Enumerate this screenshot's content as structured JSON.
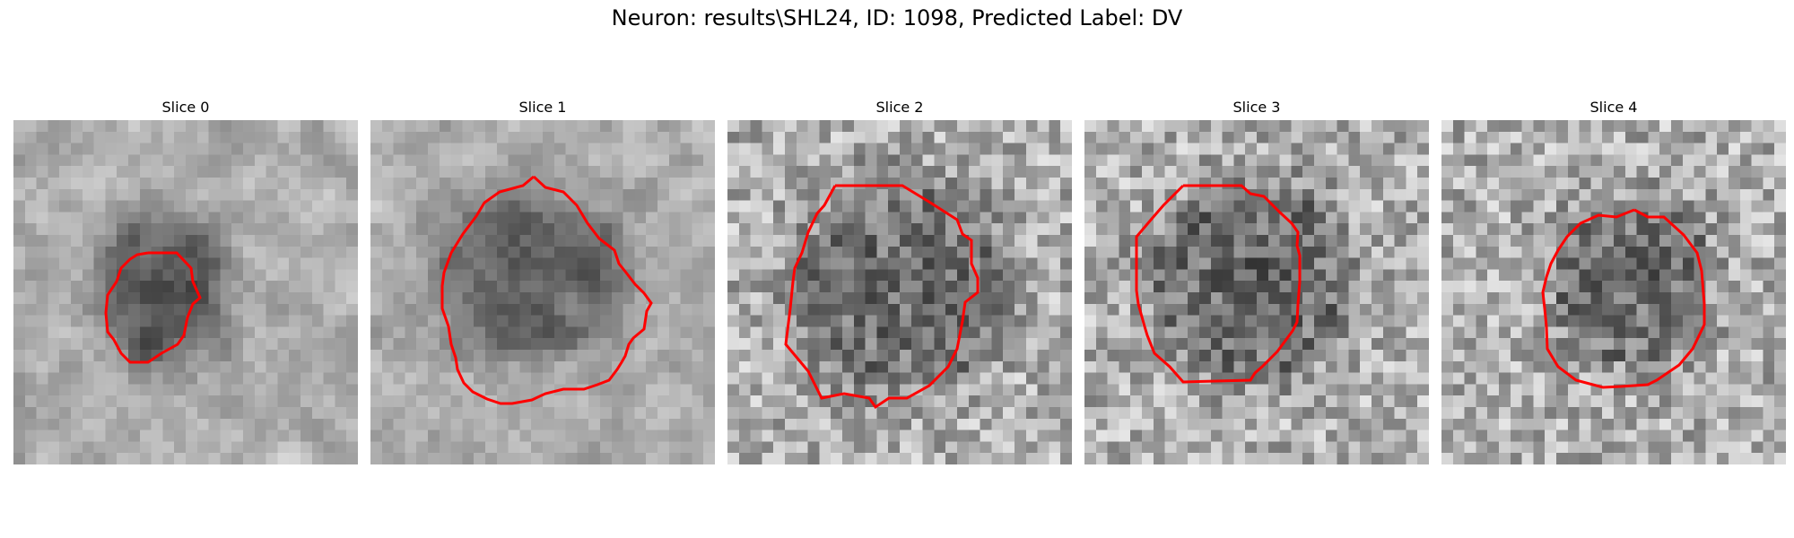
{
  "figure": {
    "title": "Neuron: results\\SHL24, ID: 1098, Predicted Label: DV"
  },
  "panels": [
    {
      "title": "Slice 0",
      "icon": "grayscale-slice-image"
    },
    {
      "title": "Slice 1",
      "icon": "grayscale-slice-image"
    },
    {
      "title": "Slice 2",
      "icon": "grayscale-slice-image"
    },
    {
      "title": "Slice 3",
      "icon": "grayscale-slice-image"
    },
    {
      "title": "Slice 4",
      "icon": "grayscale-slice-image"
    }
  ],
  "colors": {
    "contour": "#ff0000",
    "background": "#ffffff"
  }
}
